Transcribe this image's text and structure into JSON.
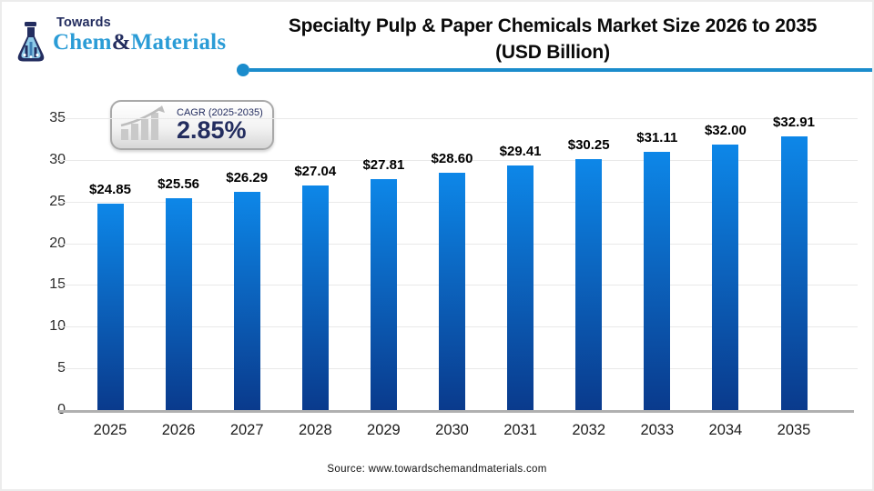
{
  "header": {
    "logo": {
      "top_text": "Towards",
      "brand_chem": "Chem",
      "brand_amp": "&",
      "brand_materials": "Materials"
    },
    "title_line1": "Specialty Pulp & Paper Chemicals Market Size 2026 to 2035",
    "title_line2": "(USD Billion)"
  },
  "cagr_badge": {
    "label": "CAGR (2025-2035)",
    "value": "2.85%"
  },
  "chart_data": {
    "type": "bar",
    "title": "Specialty Pulp & Paper Chemicals Market Size 2026 to 2035 (USD Billion)",
    "categories": [
      "2025",
      "2026",
      "2027",
      "2028",
      "2029",
      "2030",
      "2031",
      "2032",
      "2033",
      "2034",
      "2035"
    ],
    "values": [
      24.85,
      25.56,
      26.29,
      27.04,
      27.81,
      28.6,
      29.41,
      30.25,
      31.11,
      32.0,
      32.91
    ],
    "data_labels": [
      "$24.85",
      "$25.56",
      "$26.29",
      "$27.04",
      "$27.81",
      "$28.60",
      "$29.41",
      "$30.25",
      "$31.11",
      "$32.00",
      "$32.91"
    ],
    "xlabel": "",
    "ylabel": "",
    "ylim": [
      0,
      35
    ],
    "yticks": [
      0,
      5,
      10,
      15,
      20,
      25,
      30,
      35
    ],
    "grid": true,
    "legend": "none",
    "bar_color_top": "#0d87e8",
    "bar_color_bottom": "#0a3a8c"
  },
  "footer": {
    "source": "Source: www.towardschemandmaterials.com"
  },
  "colors": {
    "accent_line_blue": "#1b8ccc",
    "navy": "#232d5f",
    "logo_blue": "#2b9cd6",
    "axis_gray": "#b0b0b0",
    "gridline_gray": "#e9e9e9"
  }
}
